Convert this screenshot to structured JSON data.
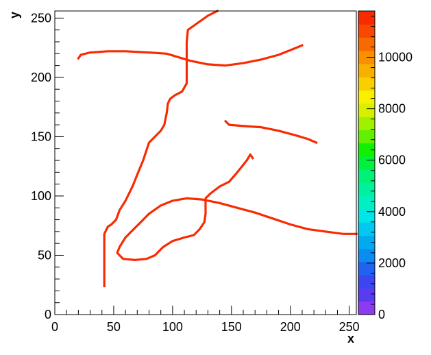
{
  "chart_data": {
    "type": "heatmap",
    "title": "",
    "xlabel": "x",
    "ylabel": "y",
    "xlim": [
      0,
      256
    ],
    "ylim": [
      0,
      256
    ],
    "x_ticks": [
      0,
      50,
      100,
      150,
      200,
      250
    ],
    "y_ticks": [
      0,
      50,
      100,
      150,
      200,
      250
    ],
    "colorbar": {
      "range": [
        0,
        11800
      ],
      "ticks": [
        0,
        2000,
        4000,
        6000,
        8000,
        10000
      ],
      "colors": [
        "#8c3cf0",
        "#5a3cf0",
        "#3c46f0",
        "#1e64f0",
        "#0a8cf0",
        "#00aaf0",
        "#00c8f0",
        "#00e6e6",
        "#00f0c0",
        "#00f0a0",
        "#00f078",
        "#00f040",
        "#10f000",
        "#60f000",
        "#a0f000",
        "#d8f000",
        "#f8f000",
        "#f8d000",
        "#f8b000",
        "#f89000",
        "#f86a00",
        "#f84800",
        "#f82a00"
      ]
    },
    "stroke_value": 11400,
    "stroke_color": "#f82a00",
    "strokes": [
      {
        "name": "top-curve",
        "points": [
          [
            20,
            216
          ],
          [
            22,
            219
          ],
          [
            30,
            221
          ],
          [
            45,
            222
          ],
          [
            60,
            222
          ],
          [
            80,
            221
          ],
          [
            95,
            220
          ],
          [
            105,
            217
          ],
          [
            115,
            214
          ],
          [
            130,
            211
          ],
          [
            145,
            210
          ],
          [
            160,
            212
          ],
          [
            175,
            215
          ],
          [
            190,
            219
          ],
          [
            200,
            223
          ],
          [
            210,
            227
          ]
        ]
      },
      {
        "name": "left-vertical-stroke",
        "points": [
          [
            42,
            24
          ],
          [
            42,
            40
          ],
          [
            42,
            55
          ],
          [
            42,
            68
          ],
          [
            45,
            74
          ],
          [
            48,
            76
          ],
          [
            52,
            80
          ],
          [
            55,
            88
          ],
          [
            60,
            96
          ],
          [
            66,
            108
          ],
          [
            70,
            118
          ],
          [
            75,
            130
          ],
          [
            80,
            145
          ],
          [
            85,
            150
          ],
          [
            90,
            155
          ],
          [
            93,
            160
          ],
          [
            95,
            170
          ],
          [
            96,
            178
          ],
          [
            98,
            182
          ],
          [
            102,
            185
          ],
          [
            108,
            188
          ],
          [
            112,
            195
          ],
          [
            112,
            210
          ],
          [
            112,
            230
          ],
          [
            113,
            240
          ],
          [
            120,
            245
          ],
          [
            130,
            252
          ],
          [
            138,
            256
          ]
        ]
      },
      {
        "name": "loop-stroke",
        "points": [
          [
            168,
            132
          ],
          [
            166,
            135
          ],
          [
            163,
            130
          ],
          [
            155,
            120
          ],
          [
            148,
            112
          ],
          [
            140,
            108
          ],
          [
            132,
            102
          ],
          [
            128,
            98
          ],
          [
            128,
            85
          ],
          [
            127,
            78
          ],
          [
            123,
            72
          ],
          [
            118,
            67
          ],
          [
            110,
            65
          ],
          [
            100,
            62
          ],
          [
            92,
            57
          ],
          [
            85,
            50
          ],
          [
            78,
            47
          ],
          [
            68,
            46
          ],
          [
            58,
            47
          ],
          [
            53,
            52
          ],
          [
            55,
            57
          ],
          [
            60,
            65
          ],
          [
            66,
            71
          ],
          [
            72,
            77
          ],
          [
            80,
            85
          ],
          [
            90,
            92
          ],
          [
            100,
            96
          ],
          [
            112,
            98
          ],
          [
            125,
            97
          ],
          [
            140,
            94
          ],
          [
            155,
            90
          ],
          [
            170,
            86
          ],
          [
            185,
            81
          ],
          [
            200,
            76
          ],
          [
            215,
            72
          ],
          [
            230,
            70
          ],
          [
            245,
            68
          ],
          [
            256,
            68
          ]
        ]
      },
      {
        "name": "middle-right-stroke",
        "points": [
          [
            145,
            163
          ],
          [
            148,
            160
          ],
          [
            160,
            159
          ],
          [
            175,
            158
          ],
          [
            190,
            155
          ],
          [
            205,
            151
          ],
          [
            215,
            148
          ],
          [
            222,
            145
          ]
        ]
      }
    ]
  }
}
